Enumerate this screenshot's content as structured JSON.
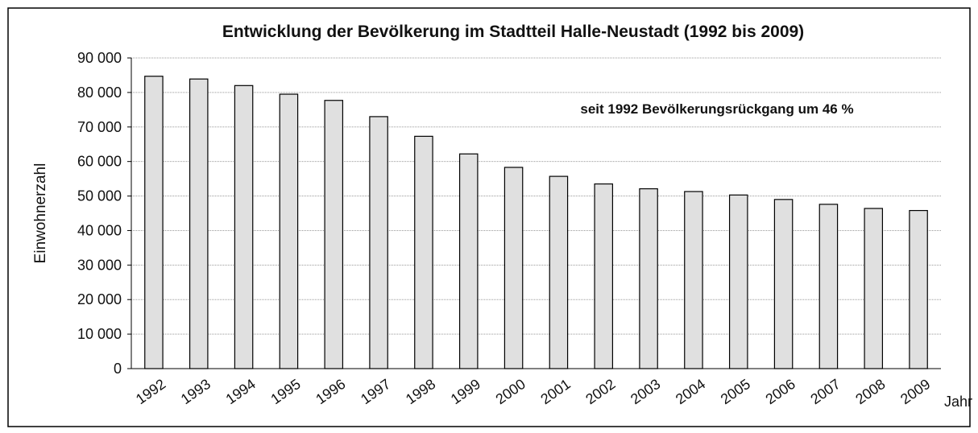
{
  "chart_data": {
    "type": "bar",
    "title": "Entwicklung der Bevölkerung im Stadtteil Halle-Neustadt (1992 bis 2009)",
    "annotation": "seit 1992 Bevölkerungsrückgang um 46 %",
    "y_label": "Einwohnerzahl",
    "x_label": "Jahr",
    "categories": [
      "1992",
      "1993",
      "1994",
      "1995",
      "1996",
      "1997",
      "1998",
      "1999",
      "2000",
      "2001",
      "2002",
      "2003",
      "2004",
      "2005",
      "2006",
      "2007",
      "2008",
      "2009"
    ],
    "values": [
      84700,
      83900,
      82000,
      79500,
      77700,
      73000,
      67300,
      62200,
      58300,
      55700,
      53500,
      52100,
      51300,
      50300,
      49000,
      47600,
      46400,
      45800
    ],
    "color": "#e0e0e0",
    "ylim": [
      0,
      90000
    ],
    "yticks": [
      0,
      {
        "value": 10000,
        "label": "10 000"
      },
      {
        "value": 20000,
        "label": "20 000"
      },
      {
        "value": 30000,
        "label": "30 000"
      },
      {
        "value": 40000,
        "label": "40 000"
      },
      {
        "value": 50000,
        "label": "50 000"
      },
      {
        "value": 60000,
        "label": "60 000"
      },
      {
        "value": 70000,
        "label": "70 000"
      },
      {
        "value": 80000,
        "label": "80 000"
      },
      {
        "value": 90000,
        "label": "90 000"
      }
    ],
    "grid": true
  }
}
